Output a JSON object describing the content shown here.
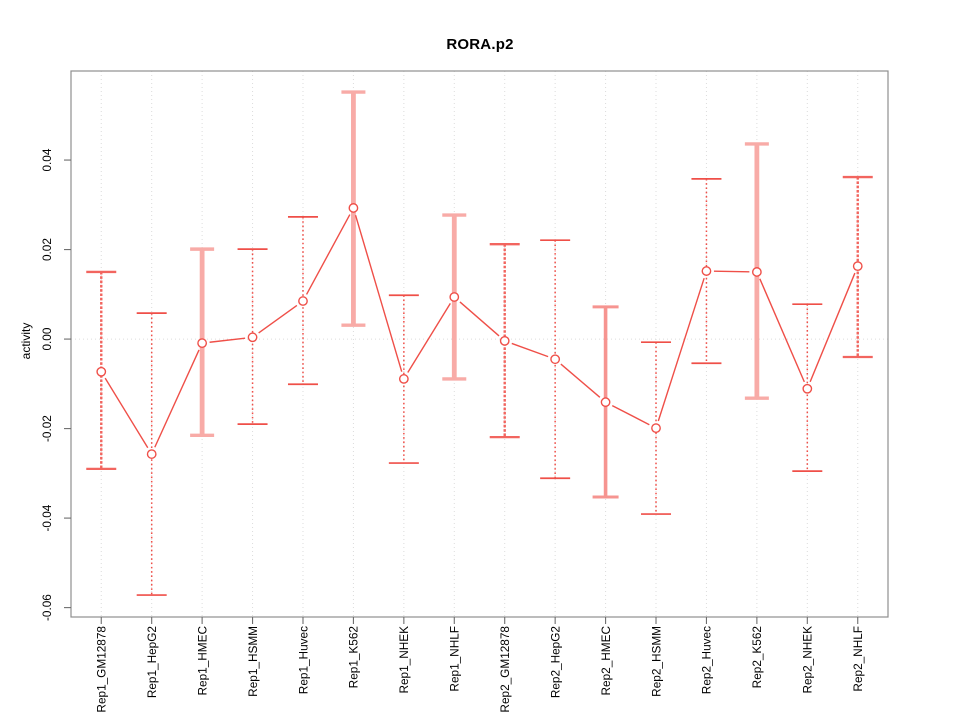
{
  "window": {
    "title": "RORA.p2"
  },
  "chart_data": {
    "type": "line",
    "title": "RORA.p2",
    "xlabel": "",
    "ylabel": "activity",
    "legend": "none",
    "grid": "dotted vertical gridline at each category; dotted horizontal reference line at y=0",
    "marker": "open-circle",
    "error_bars": true,
    "ylim": [
      -0.0621,
      0.0599
    ],
    "y_ticks": [
      -0.06,
      -0.04,
      -0.02,
      0.0,
      0.02,
      0.04
    ],
    "y_tick_labels": [
      "-0.06",
      "-0.04",
      "-0.02",
      "0.00",
      "0.02",
      "0.04"
    ],
    "categories": [
      "Rep1_GM12878",
      "Rep1_HepG2",
      "Rep1_HMEC",
      "Rep1_HSMM",
      "Rep1_Huvec",
      "Rep1_K562",
      "Rep1_NHEK",
      "Rep1_NHLF",
      "Rep2_GM12878",
      "Rep2_HepG2",
      "Rep2_HMEC",
      "Rep2_HSMM",
      "Rep2_Huvec",
      "Rep2_K562",
      "Rep2_NHEK",
      "Rep2_NHLF"
    ],
    "points": [
      {
        "label": "Rep1_GM12878",
        "value": -0.0073,
        "low": -0.029,
        "high": 0.015,
        "bar_weight": 2
      },
      {
        "label": "Rep1_HepG2",
        "value": -0.0257,
        "low": -0.0572,
        "high": 0.0058,
        "bar_weight": 1
      },
      {
        "label": "Rep1_HMEC",
        "value": -0.0009,
        "low": -0.0215,
        "high": 0.0201,
        "bar_weight": 4
      },
      {
        "label": "Rep1_HSMM",
        "value": 0.0004,
        "low": -0.019,
        "high": 0.0201,
        "bar_weight": 1
      },
      {
        "label": "Rep1_Huvec",
        "value": 0.0085,
        "low": -0.0101,
        "high": 0.0273,
        "bar_weight": 1
      },
      {
        "label": "Rep1_K562",
        "value": 0.0293,
        "low": 0.0031,
        "high": 0.0552,
        "bar_weight": 4
      },
      {
        "label": "Rep1_NHEK",
        "value": -0.0089,
        "low": -0.0277,
        "high": 0.0098,
        "bar_weight": 1
      },
      {
        "label": "Rep1_NHLF",
        "value": 0.0094,
        "low": -0.0089,
        "high": 0.0277,
        "bar_weight": 4
      },
      {
        "label": "Rep2_GM12878",
        "value": -0.0004,
        "low": -0.0219,
        "high": 0.0212,
        "bar_weight": 2
      },
      {
        "label": "Rep2_HepG2",
        "value": -0.0045,
        "low": -0.0311,
        "high": 0.0221,
        "bar_weight": 1
      },
      {
        "label": "Rep2_HMEC",
        "value": -0.0141,
        "low": -0.0353,
        "high": 0.0072,
        "bar_weight": 3
      },
      {
        "label": "Rep2_HSMM",
        "value": -0.0199,
        "low": -0.0391,
        "high": -0.0007,
        "bar_weight": 1
      },
      {
        "label": "Rep2_Huvec",
        "value": 0.0152,
        "low": -0.0054,
        "high": 0.0358,
        "bar_weight": 1
      },
      {
        "label": "Rep2_K562",
        "value": 0.015,
        "low": -0.0132,
        "high": 0.0436,
        "bar_weight": 4
      },
      {
        "label": "Rep2_NHEK",
        "value": -0.0111,
        "low": -0.0295,
        "high": 0.0078,
        "bar_weight": 1
      },
      {
        "label": "Rep2_NHLF",
        "value": 0.0163,
        "low": -0.004,
        "high": 0.0362,
        "bar_weight": 2
      }
    ],
    "reference_line_y": 0,
    "colors": {
      "series": "#ef4f48",
      "error_bar_thin": "#ef4f48",
      "error_bar_medium2": "#f2655f",
      "error_bar_medium3": "#f69490",
      "error_bar_thick": "#f8aba7",
      "gridline": "#dcdcdc",
      "box_border": "#8f8f8f",
      "tick_mark": "#6e6e6e",
      "text": "#000000",
      "background": "#ffffff"
    }
  }
}
